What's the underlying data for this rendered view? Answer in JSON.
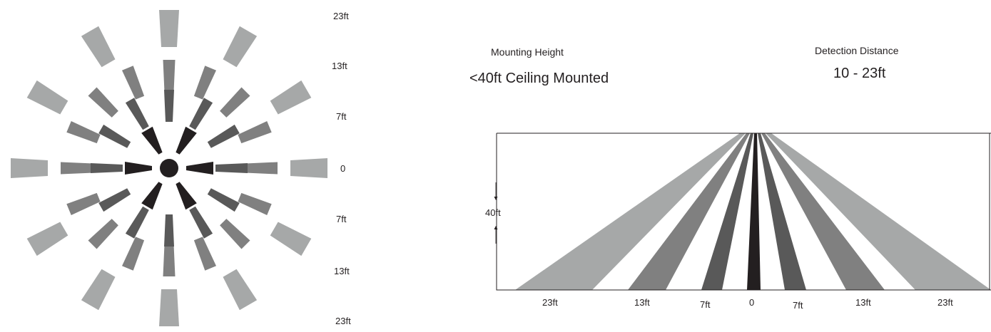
{
  "colors": {
    "outer": "#a6a8a8",
    "middle": "#808080",
    "inner": "#595959",
    "core": "#231f20",
    "line": "#231f20"
  },
  "radial_scale": {
    "labels": [
      "23ft",
      "13ft",
      "7ft",
      "0",
      "7ft",
      "13ft",
      "23ft"
    ]
  },
  "mounting": {
    "title": "Mounting Height",
    "value": "<40ft Ceiling Mounted"
  },
  "detection": {
    "title": "Detection Distance",
    "value": "10 - 23ft"
  },
  "side_view": {
    "height_label": "40ft",
    "distance_labels": [
      "23ft",
      "13ft",
      "7ft",
      "0",
      "7ft",
      "13ft",
      "23ft"
    ]
  }
}
